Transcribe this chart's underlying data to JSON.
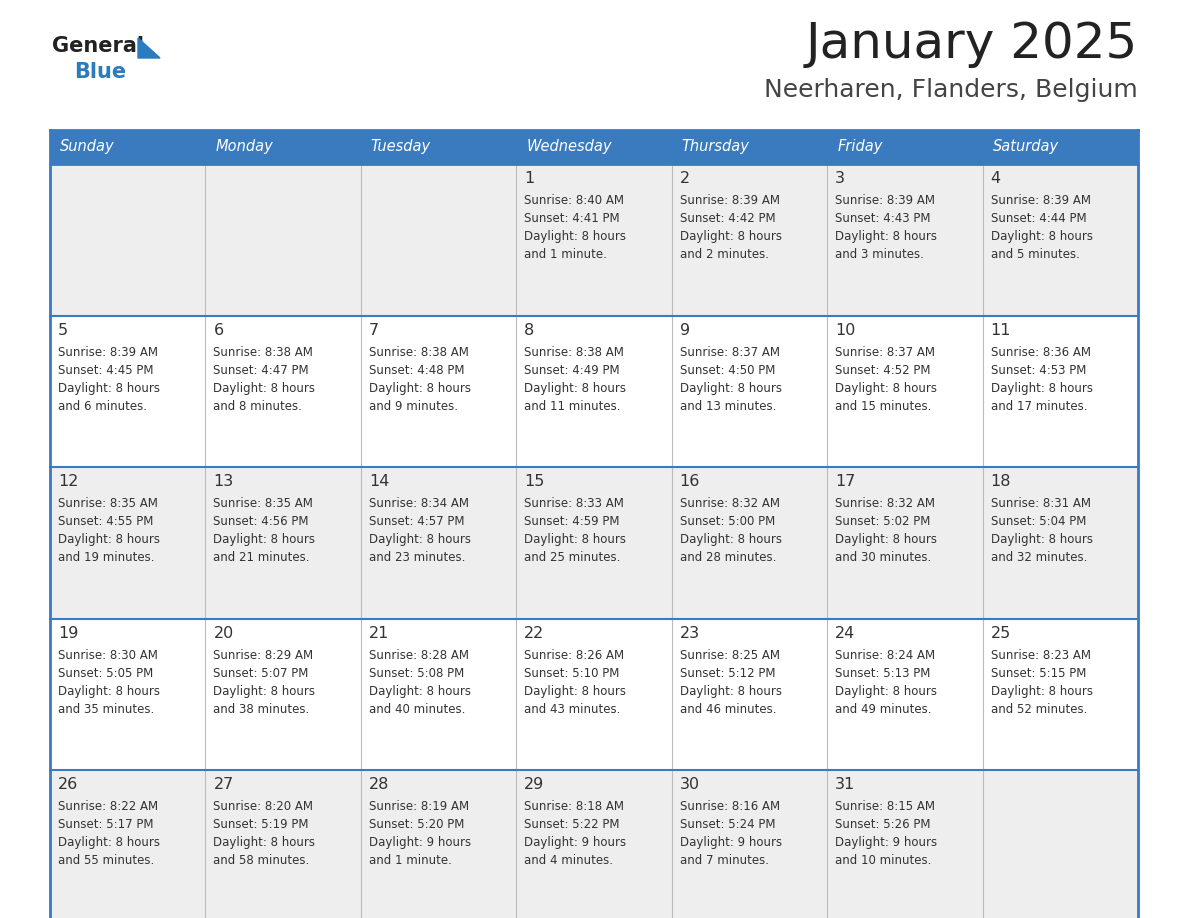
{
  "title": "January 2025",
  "subtitle": "Neerharen, Flanders, Belgium",
  "header_color": "#3a7abf",
  "header_text_color": "#ffffff",
  "day_names": [
    "Sunday",
    "Monday",
    "Tuesday",
    "Wednesday",
    "Thursday",
    "Friday",
    "Saturday"
  ],
  "row_colors": [
    "#eeeeee",
    "#ffffff",
    "#eeeeee",
    "#ffffff",
    "#eeeeee"
  ],
  "border_color": "#3a7abf",
  "day_num_color": "#333333",
  "text_color": "#333333",
  "logo_general_color": "#222222",
  "logo_blue_color": "#2b7bbf",
  "title_color": "#222222",
  "subtitle_color": "#444444",
  "weeks": [
    [
      {
        "day": "",
        "sunrise": "",
        "sunset": "",
        "daylight": ""
      },
      {
        "day": "",
        "sunrise": "",
        "sunset": "",
        "daylight": ""
      },
      {
        "day": "",
        "sunrise": "",
        "sunset": "",
        "daylight": ""
      },
      {
        "day": "1",
        "sunrise": "8:40 AM",
        "sunset": "4:41 PM",
        "daylight": "8 hours\nand 1 minute."
      },
      {
        "day": "2",
        "sunrise": "8:39 AM",
        "sunset": "4:42 PM",
        "daylight": "8 hours\nand 2 minutes."
      },
      {
        "day": "3",
        "sunrise": "8:39 AM",
        "sunset": "4:43 PM",
        "daylight": "8 hours\nand 3 minutes."
      },
      {
        "day": "4",
        "sunrise": "8:39 AM",
        "sunset": "4:44 PM",
        "daylight": "8 hours\nand 5 minutes."
      }
    ],
    [
      {
        "day": "5",
        "sunrise": "8:39 AM",
        "sunset": "4:45 PM",
        "daylight": "8 hours\nand 6 minutes."
      },
      {
        "day": "6",
        "sunrise": "8:38 AM",
        "sunset": "4:47 PM",
        "daylight": "8 hours\nand 8 minutes."
      },
      {
        "day": "7",
        "sunrise": "8:38 AM",
        "sunset": "4:48 PM",
        "daylight": "8 hours\nand 9 minutes."
      },
      {
        "day": "8",
        "sunrise": "8:38 AM",
        "sunset": "4:49 PM",
        "daylight": "8 hours\nand 11 minutes."
      },
      {
        "day": "9",
        "sunrise": "8:37 AM",
        "sunset": "4:50 PM",
        "daylight": "8 hours\nand 13 minutes."
      },
      {
        "day": "10",
        "sunrise": "8:37 AM",
        "sunset": "4:52 PM",
        "daylight": "8 hours\nand 15 minutes."
      },
      {
        "day": "11",
        "sunrise": "8:36 AM",
        "sunset": "4:53 PM",
        "daylight": "8 hours\nand 17 minutes."
      }
    ],
    [
      {
        "day": "12",
        "sunrise": "8:35 AM",
        "sunset": "4:55 PM",
        "daylight": "8 hours\nand 19 minutes."
      },
      {
        "day": "13",
        "sunrise": "8:35 AM",
        "sunset": "4:56 PM",
        "daylight": "8 hours\nand 21 minutes."
      },
      {
        "day": "14",
        "sunrise": "8:34 AM",
        "sunset": "4:57 PM",
        "daylight": "8 hours\nand 23 minutes."
      },
      {
        "day": "15",
        "sunrise": "8:33 AM",
        "sunset": "4:59 PM",
        "daylight": "8 hours\nand 25 minutes."
      },
      {
        "day": "16",
        "sunrise": "8:32 AM",
        "sunset": "5:00 PM",
        "daylight": "8 hours\nand 28 minutes."
      },
      {
        "day": "17",
        "sunrise": "8:32 AM",
        "sunset": "5:02 PM",
        "daylight": "8 hours\nand 30 minutes."
      },
      {
        "day": "18",
        "sunrise": "8:31 AM",
        "sunset": "5:04 PM",
        "daylight": "8 hours\nand 32 minutes."
      }
    ],
    [
      {
        "day": "19",
        "sunrise": "8:30 AM",
        "sunset": "5:05 PM",
        "daylight": "8 hours\nand 35 minutes."
      },
      {
        "day": "20",
        "sunrise": "8:29 AM",
        "sunset": "5:07 PM",
        "daylight": "8 hours\nand 38 minutes."
      },
      {
        "day": "21",
        "sunrise": "8:28 AM",
        "sunset": "5:08 PM",
        "daylight": "8 hours\nand 40 minutes."
      },
      {
        "day": "22",
        "sunrise": "8:26 AM",
        "sunset": "5:10 PM",
        "daylight": "8 hours\nand 43 minutes."
      },
      {
        "day": "23",
        "sunrise": "8:25 AM",
        "sunset": "5:12 PM",
        "daylight": "8 hours\nand 46 minutes."
      },
      {
        "day": "24",
        "sunrise": "8:24 AM",
        "sunset": "5:13 PM",
        "daylight": "8 hours\nand 49 minutes."
      },
      {
        "day": "25",
        "sunrise": "8:23 AM",
        "sunset": "5:15 PM",
        "daylight": "8 hours\nand 52 minutes."
      }
    ],
    [
      {
        "day": "26",
        "sunrise": "8:22 AM",
        "sunset": "5:17 PM",
        "daylight": "8 hours\nand 55 minutes."
      },
      {
        "day": "27",
        "sunrise": "8:20 AM",
        "sunset": "5:19 PM",
        "daylight": "8 hours\nand 58 minutes."
      },
      {
        "day": "28",
        "sunrise": "8:19 AM",
        "sunset": "5:20 PM",
        "daylight": "9 hours\nand 1 minute."
      },
      {
        "day": "29",
        "sunrise": "8:18 AM",
        "sunset": "5:22 PM",
        "daylight": "9 hours\nand 4 minutes."
      },
      {
        "day": "30",
        "sunrise": "8:16 AM",
        "sunset": "5:24 PM",
        "daylight": "9 hours\nand 7 minutes."
      },
      {
        "day": "31",
        "sunrise": "8:15 AM",
        "sunset": "5:26 PM",
        "daylight": "9 hours\nand 10 minutes."
      },
      {
        "day": "",
        "sunrise": "",
        "sunset": "",
        "daylight": ""
      }
    ]
  ]
}
